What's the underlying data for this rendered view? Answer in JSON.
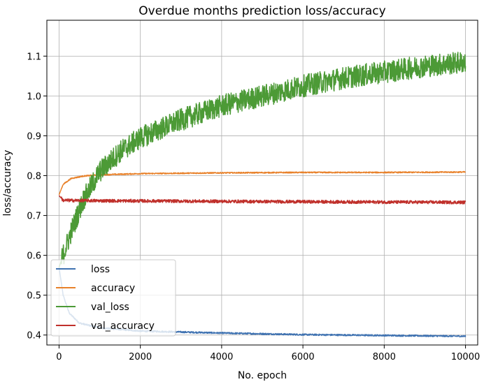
{
  "chart_data": {
    "type": "line",
    "title": "Overdue months prediction loss/accuracy",
    "xlabel": "No. epoch",
    "ylabel": "loss/accuracy",
    "xlim": [
      -300,
      10300
    ],
    "ylim": [
      0.375,
      1.19
    ],
    "x_ticks": [
      0,
      2000,
      4000,
      6000,
      8000,
      10000
    ],
    "x_tick_labels": [
      "0",
      "2000",
      "4000",
      "6000",
      "8000",
      "10000"
    ],
    "y_ticks": [
      0.4,
      0.5,
      0.6,
      0.7,
      0.8,
      0.9,
      1.0,
      1.1
    ],
    "y_tick_labels": [
      "0.4",
      "0.5",
      "0.6",
      "0.7",
      "0.8",
      "0.9",
      "1.0",
      "1.1"
    ],
    "grid": true,
    "legend_position": "lower-left",
    "series": [
      {
        "name": "loss",
        "color": "#3f72b1",
        "noise": 0.002,
        "points": [
          [
            0,
            0.57
          ],
          [
            100,
            0.5
          ],
          [
            250,
            0.455
          ],
          [
            500,
            0.43
          ],
          [
            1000,
            0.418
          ],
          [
            2000,
            0.41
          ],
          [
            4000,
            0.405
          ],
          [
            6000,
            0.401
          ],
          [
            8000,
            0.399
          ],
          [
            10000,
            0.397
          ]
        ]
      },
      {
        "name": "accuracy",
        "color": "#e8812a",
        "noise": 0.0015,
        "points": [
          [
            0,
            0.752
          ],
          [
            100,
            0.778
          ],
          [
            300,
            0.793
          ],
          [
            600,
            0.799
          ],
          [
            1000,
            0.802
          ],
          [
            2000,
            0.805
          ],
          [
            4000,
            0.807
          ],
          [
            6000,
            0.808
          ],
          [
            8000,
            0.808
          ],
          [
            10000,
            0.809
          ]
        ]
      },
      {
        "name": "val_loss",
        "color": "#4c9a36",
        "noise": 0.028,
        "points": [
          [
            0,
            0.57
          ],
          [
            300,
            0.66
          ],
          [
            600,
            0.74
          ],
          [
            1000,
            0.81
          ],
          [
            1500,
            0.86
          ],
          [
            2000,
            0.895
          ],
          [
            3000,
            0.94
          ],
          [
            4000,
            0.975
          ],
          [
            5000,
            1.0
          ],
          [
            6000,
            1.025
          ],
          [
            7000,
            1.045
          ],
          [
            8000,
            1.06
          ],
          [
            9000,
            1.075
          ],
          [
            10000,
            1.085
          ]
        ]
      },
      {
        "name": "val_accuracy",
        "color": "#c0302b",
        "noise": 0.004,
        "points": [
          [
            0,
            0.75
          ],
          [
            100,
            0.738
          ],
          [
            1000,
            0.737
          ],
          [
            3000,
            0.736
          ],
          [
            5000,
            0.735
          ],
          [
            7000,
            0.734
          ],
          [
            10000,
            0.733
          ]
        ]
      }
    ]
  }
}
